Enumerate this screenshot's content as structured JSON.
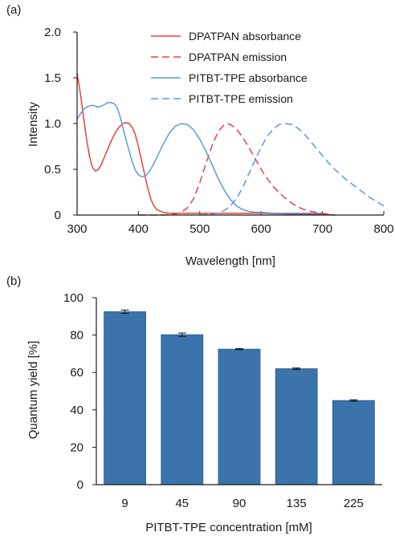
{
  "figure": {
    "panel_a_label": "(a)",
    "panel_b_label": "(b)"
  },
  "colors": {
    "red": "#e8413c",
    "blue": "#5b9bd5",
    "bar": "#3b74ad",
    "bar_stroke": "#2d5b8c"
  },
  "chart_data": [
    {
      "type": "line",
      "panel": "(a)",
      "xlabel": "Wavelength [nm]",
      "ylabel": "Intensity",
      "xlim": [
        300,
        800
      ],
      "ylim": [
        0,
        2.0
      ],
      "xticks": [
        "300",
        "400",
        "500",
        "600",
        "700",
        "800"
      ],
      "yticks": [
        "0",
        "0.5",
        "1.0",
        "1.5",
        "2.0"
      ],
      "grid": false,
      "legend_position": "top-right",
      "series": [
        {
          "name": "DPATPAN absorbance",
          "color": "#e8413c",
          "dash": "solid",
          "x": [
            300,
            305,
            310,
            315,
            320,
            325,
            330,
            335,
            340,
            345,
            350,
            355,
            360,
            365,
            370,
            375,
            380,
            385,
            390,
            395,
            400,
            405,
            410,
            415,
            420,
            425,
            430,
            440,
            450,
            460,
            470,
            480,
            500,
            550,
            600,
            650,
            700,
            720
          ],
          "y": [
            1.55,
            1.35,
            1.1,
            0.85,
            0.65,
            0.52,
            0.48,
            0.5,
            0.56,
            0.64,
            0.72,
            0.8,
            0.87,
            0.93,
            0.97,
            1.0,
            1.01,
            1.0,
            0.96,
            0.88,
            0.75,
            0.6,
            0.45,
            0.3,
            0.18,
            0.1,
            0.06,
            0.03,
            0.02,
            0.02,
            0.02,
            0.02,
            0.02,
            0.02,
            0.02,
            0.01,
            0.01,
            0.0
          ]
        },
        {
          "name": "DPATPAN emission",
          "color": "#e8413c",
          "dash": "dashed",
          "x": [
            400,
            440,
            460,
            470,
            480,
            490,
            500,
            510,
            520,
            530,
            540,
            545,
            550,
            560,
            570,
            580,
            590,
            600,
            610,
            620,
            630,
            640,
            650,
            660,
            670,
            680,
            690,
            700,
            710,
            720
          ],
          "y": [
            0.0,
            0.0,
            0.01,
            0.03,
            0.08,
            0.18,
            0.35,
            0.56,
            0.76,
            0.91,
            0.99,
            1.0,
            0.99,
            0.94,
            0.85,
            0.74,
            0.62,
            0.5,
            0.4,
            0.31,
            0.24,
            0.18,
            0.13,
            0.09,
            0.06,
            0.04,
            0.03,
            0.02,
            0.01,
            0.0
          ]
        },
        {
          "name": "PITBT-TPE absorbance",
          "color": "#5b9bd5",
          "dash": "solid",
          "x": [
            300,
            305,
            310,
            315,
            320,
            325,
            330,
            335,
            340,
            345,
            350,
            355,
            360,
            365,
            370,
            375,
            380,
            385,
            390,
            395,
            400,
            405,
            410,
            415,
            420,
            425,
            430,
            440,
            450,
            460,
            470,
            480,
            490,
            500,
            510,
            520,
            530,
            540,
            550,
            560,
            570,
            580,
            590,
            600,
            620,
            640,
            660,
            680,
            700
          ],
          "y": [
            1.05,
            1.1,
            1.15,
            1.18,
            1.19,
            1.2,
            1.19,
            1.18,
            1.19,
            1.21,
            1.23,
            1.23,
            1.22,
            1.18,
            1.08,
            0.95,
            0.82,
            0.7,
            0.58,
            0.49,
            0.44,
            0.42,
            0.42,
            0.45,
            0.5,
            0.56,
            0.63,
            0.77,
            0.89,
            0.97,
            1.0,
            0.99,
            0.93,
            0.83,
            0.7,
            0.55,
            0.4,
            0.27,
            0.17,
            0.1,
            0.06,
            0.04,
            0.03,
            0.03,
            0.02,
            0.02,
            0.02,
            0.02,
            0.02
          ]
        },
        {
          "name": "PITBT-TPE emission",
          "color": "#5b9bd5",
          "dash": "dashed",
          "x": [
            500,
            520,
            530,
            540,
            550,
            560,
            570,
            580,
            590,
            600,
            610,
            620,
            630,
            640,
            650,
            660,
            670,
            680,
            690,
            700,
            710,
            720,
            730,
            740,
            750,
            760,
            770,
            780,
            790,
            800
          ],
          "y": [
            0.0,
            0.01,
            0.02,
            0.05,
            0.1,
            0.18,
            0.3,
            0.45,
            0.6,
            0.74,
            0.86,
            0.94,
            0.99,
            1.0,
            0.99,
            0.95,
            0.89,
            0.81,
            0.73,
            0.65,
            0.57,
            0.5,
            0.44,
            0.38,
            0.33,
            0.28,
            0.23,
            0.18,
            0.14,
            0.1
          ]
        }
      ]
    },
    {
      "type": "bar",
      "panel": "(b)",
      "xlabel": "PITBT-TPE concentration [mM]",
      "ylabel": "Quantum yield [%]",
      "categories": [
        "9",
        "45",
        "90",
        "135",
        "225"
      ],
      "values": [
        92.5,
        80.2,
        72.5,
        62.0,
        45.0
      ],
      "errors": [
        0.9,
        0.9,
        0.3,
        0.4,
        0.4
      ],
      "ylim": [
        0,
        100
      ],
      "yticks": [
        "0",
        "20",
        "40",
        "60",
        "80",
        "100"
      ],
      "grid": false
    }
  ]
}
